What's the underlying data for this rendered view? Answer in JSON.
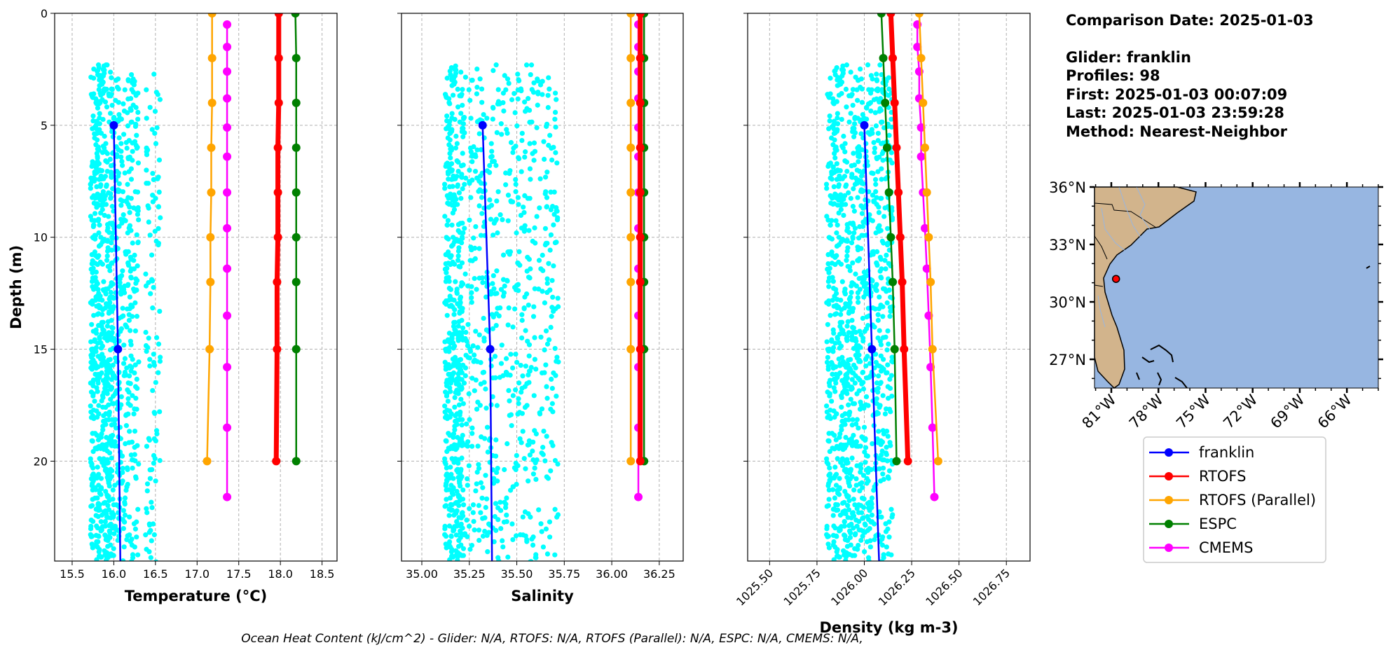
{
  "info": {
    "comparison_date": "Comparison Date: 2025-01-03",
    "glider": "Glider: franklin",
    "profiles": "Profiles: 98",
    "first": "First: 2025-01-03 00:07:09",
    "last": "Last: 2025-01-03 23:59:28",
    "method": "Method: Nearest-Neighbor"
  },
  "footer": "Ocean Heat Content (kJ/cm^2) - Glider: N/A,  RTOFS: N/A,  RTOFS (Parallel): N/A,  ESPC: N/A,  CMEMS: N/A,",
  "chart_data": [
    {
      "type": "line",
      "title": "",
      "xlabel": "Temperature (°C)",
      "ylabel": "Depth (m)",
      "xlim": [
        15.29,
        18.68
      ],
      "ylim": [
        24.46,
        0
      ],
      "xticks": [
        "15.5",
        "16.0",
        "16.5",
        "17.0",
        "17.5",
        "18.0",
        "18.5"
      ],
      "yticks": [
        "0",
        "5",
        "10",
        "15",
        "20"
      ],
      "grid": true,
      "series": [
        {
          "name": "franklin",
          "color": "#0000ff",
          "depth": [
            5,
            15,
            25
          ],
          "values": [
            16.0,
            16.05,
            16.08
          ]
        },
        {
          "name": "RTOFS",
          "color": "#ff0000",
          "depth": [
            0,
            2,
            4,
            6,
            8,
            10,
            12,
            15,
            20
          ],
          "values": [
            17.98,
            17.98,
            17.98,
            17.97,
            17.97,
            17.97,
            17.96,
            17.96,
            17.95
          ]
        },
        {
          "name": "RTOFS (Parallel)",
          "color": "#ffa500",
          "depth": [
            0,
            2,
            4,
            6,
            8,
            10,
            12,
            15,
            20
          ],
          "values": [
            17.18,
            17.18,
            17.18,
            17.17,
            17.17,
            17.16,
            17.16,
            17.15,
            17.12
          ]
        },
        {
          "name": "ESPC",
          "color": "#008000",
          "depth": [
            0,
            2,
            4,
            6,
            8,
            10,
            12,
            15,
            20
          ],
          "values": [
            18.18,
            18.19,
            18.19,
            18.19,
            18.19,
            18.19,
            18.19,
            18.19,
            18.19
          ]
        },
        {
          "name": "CMEMS",
          "color": "#ff00ff",
          "depth": [
            0.5,
            1.5,
            2.6,
            3.8,
            5.1,
            6.4,
            8.0,
            9.6,
            11.4,
            13.5,
            15.8,
            18.5,
            21.6
          ],
          "values": [
            17.36,
            17.36,
            17.36,
            17.36,
            17.36,
            17.36,
            17.36,
            17.36,
            17.36,
            17.36,
            17.36,
            17.36,
            17.36
          ]
        }
      ],
      "glider_scatter": {
        "color": "#00ffff",
        "count": 1100,
        "depth_range": [
          2.3,
          24.5
        ],
        "value_bands": [
          [
            15.72,
            16.0,
            0.6
          ],
          [
            16.0,
            16.3,
            0.3
          ],
          [
            16.38,
            16.56,
            0.1
          ]
        ]
      }
    },
    {
      "type": "line",
      "xlabel": "Salinity",
      "ylabel": "",
      "xlim": [
        34.893,
        36.376
      ],
      "ylim": [
        24.46,
        0
      ],
      "xticks": [
        "35.00",
        "35.25",
        "35.50",
        "35.75",
        "36.00",
        "36.25"
      ],
      "grid": true,
      "series": [
        {
          "name": "franklin",
          "color": "#0000ff",
          "depth": [
            5,
            15,
            25
          ],
          "values": [
            35.32,
            35.36,
            35.37
          ]
        },
        {
          "name": "RTOFS",
          "color": "#ff0000",
          "depth": [
            0,
            2,
            4,
            6,
            8,
            10,
            12,
            15,
            20
          ],
          "values": [
            36.15,
            36.15,
            36.15,
            36.15,
            36.15,
            36.15,
            36.15,
            36.15,
            36.15
          ]
        },
        {
          "name": "RTOFS (Parallel)",
          "color": "#ffa500",
          "depth": [
            0,
            2,
            4,
            6,
            8,
            10,
            12,
            15,
            20
          ],
          "values": [
            36.1,
            36.1,
            36.1,
            36.1,
            36.1,
            36.1,
            36.1,
            36.1,
            36.1
          ]
        },
        {
          "name": "ESPC",
          "color": "#008000",
          "depth": [
            0,
            2,
            4,
            6,
            8,
            10,
            12,
            15,
            20
          ],
          "values": [
            36.17,
            36.17,
            36.17,
            36.17,
            36.17,
            36.17,
            36.17,
            36.17,
            36.17
          ]
        },
        {
          "name": "CMEMS",
          "color": "#ff00ff",
          "depth": [
            0.5,
            1.5,
            2.6,
            3.8,
            5.1,
            6.4,
            8.0,
            9.6,
            11.4,
            13.5,
            15.8,
            18.5,
            21.6
          ],
          "values": [
            36.14,
            36.14,
            36.14,
            36.14,
            36.14,
            36.14,
            36.14,
            36.14,
            36.14,
            36.14,
            36.14,
            36.14,
            36.14
          ]
        }
      ],
      "glider_scatter": {
        "color": "#00ffff",
        "count": 1100,
        "depth_range": [
          2.3,
          24.5
        ],
        "value_bands": [
          [
            35.12,
            35.22,
            0.45
          ],
          [
            35.22,
            35.72,
            0.55
          ]
        ]
      }
    },
    {
      "type": "line",
      "xlabel": "Density (kg m-3)",
      "ylabel": "",
      "xlim": [
        1025.384,
        1026.875
      ],
      "ylim": [
        24.46,
        0
      ],
      "xticks": [
        "1025.50",
        "1025.75",
        "1026.00",
        "1026.25",
        "1026.50",
        "1026.75"
      ],
      "grid": true,
      "series": [
        {
          "name": "franklin",
          "color": "#0000ff",
          "depth": [
            5,
            15,
            25
          ],
          "values": [
            1026.0,
            1026.04,
            1026.08
          ]
        },
        {
          "name": "RTOFS",
          "color": "#ff0000",
          "depth": [
            0,
            2,
            4,
            6,
            8,
            10,
            12,
            15,
            20
          ],
          "values": [
            1026.14,
            1026.15,
            1026.16,
            1026.17,
            1026.18,
            1026.19,
            1026.2,
            1026.21,
            1026.23
          ]
        },
        {
          "name": "RTOFS (Parallel)",
          "color": "#ffa500",
          "depth": [
            0,
            2,
            4,
            6,
            8,
            10,
            12,
            15,
            20
          ],
          "values": [
            1026.29,
            1026.3,
            1026.31,
            1026.32,
            1026.33,
            1026.34,
            1026.35,
            1026.36,
            1026.39
          ]
        },
        {
          "name": "ESPC",
          "color": "#008000",
          "depth": [
            0,
            2,
            4,
            6,
            8,
            10,
            12,
            15,
            20
          ],
          "values": [
            1026.09,
            1026.1,
            1026.11,
            1026.12,
            1026.13,
            1026.14,
            1026.15,
            1026.16,
            1026.17
          ]
        },
        {
          "name": "CMEMS",
          "color": "#ff00ff",
          "depth": [
            0.5,
            1.5,
            2.6,
            3.8,
            5.1,
            6.4,
            8.0,
            9.6,
            11.4,
            13.5,
            15.8,
            18.5,
            21.6
          ],
          "values": [
            1026.28,
            1026.28,
            1026.29,
            1026.29,
            1026.3,
            1026.3,
            1026.31,
            1026.32,
            1026.33,
            1026.34,
            1026.35,
            1026.36,
            1026.37
          ]
        }
      ],
      "glider_scatter": {
        "color": "#00ffff",
        "count": 1100,
        "depth_range": [
          2.3,
          24.5
        ],
        "value_bands": [
          [
            1025.8,
            1025.95,
            0.5
          ],
          [
            1025.95,
            1026.15,
            0.5
          ]
        ]
      }
    }
  ],
  "map": {
    "extent": {
      "lon": [
        -82.07,
        -64.0
      ],
      "lat": [
        25.5,
        36.0
      ]
    },
    "lat_ticks": [
      {
        "value": 36,
        "label": "36°N"
      },
      {
        "value": 33,
        "label": "33°N"
      },
      {
        "value": 30,
        "label": "30°N"
      },
      {
        "value": 27,
        "label": "27°N"
      }
    ],
    "lon_ticks": [
      {
        "value": -81,
        "label": "81°W"
      },
      {
        "value": -78,
        "label": "78°W"
      },
      {
        "value": -75,
        "label": "75°W"
      },
      {
        "value": -72,
        "label": "72°W"
      },
      {
        "value": -69,
        "label": "69°W"
      },
      {
        "value": -66,
        "label": "66°W"
      }
    ],
    "glider_location": {
      "lon": -80.7,
      "lat": 31.2
    },
    "ocean_color": "#97b6e1",
    "land_color": "#d2b48c"
  },
  "legend": [
    {
      "label": "franklin",
      "color": "#0000ff"
    },
    {
      "label": "RTOFS",
      "color": "#ff0000"
    },
    {
      "label": "RTOFS (Parallel)",
      "color": "#ffa500"
    },
    {
      "label": "ESPC",
      "color": "#008000"
    },
    {
      "label": "CMEMS",
      "color": "#ff00ff"
    }
  ]
}
